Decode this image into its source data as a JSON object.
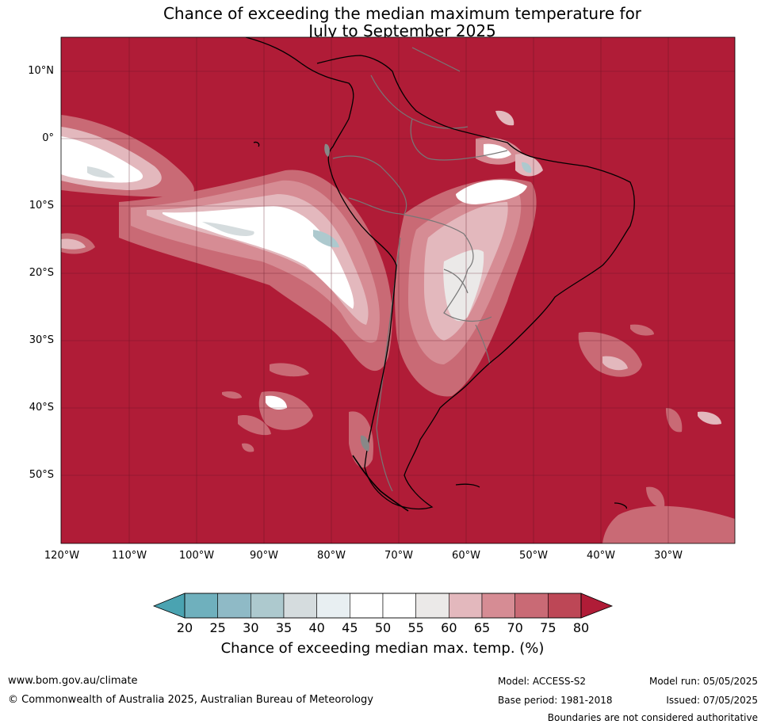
{
  "title_line1": "Chance of exceeding the median maximum temperature for",
  "title_line2": "July to September 2025",
  "lat_labels": [
    "10°N",
    "0°",
    "10°S",
    "20°S",
    "30°S",
    "40°S",
    "50°S"
  ],
  "lon_labels": [
    "120°W",
    "110°W",
    "100°W",
    "90°W",
    "80°W",
    "70°W",
    "60°W",
    "50°W",
    "40°W",
    "30°W"
  ],
  "colorbar": {
    "ticks": [
      "20",
      "25",
      "30",
      "35",
      "40",
      "45",
      "50",
      "55",
      "60",
      "65",
      "70",
      "75",
      "80"
    ],
    "colors": [
      "#4aa3b1",
      "#6fb0bd",
      "#8fbac6",
      "#adc9ce",
      "#d5dcde",
      "#e8eff2",
      "#ffffff",
      "#ffffff",
      "#ebe9e8",
      "#e3b8bd",
      "#d68c94",
      "#c96a75",
      "#bd4756",
      "#b01c37"
    ],
    "label": "Chance of exceeding median max. temp. (%)"
  },
  "footer": {
    "website": "www.bom.gov.au/climate",
    "copyright": "© Commonwealth of Australia 2025, Australian Bureau of Meteorology",
    "model": "Model: ACCESS-S2",
    "base_period": "Base period: 1981-2018",
    "model_run": "Model run: 05/05/2025",
    "issued": "Issued: 07/05/2025",
    "disclaimer": "Boundaries are not considered authoritative"
  }
}
